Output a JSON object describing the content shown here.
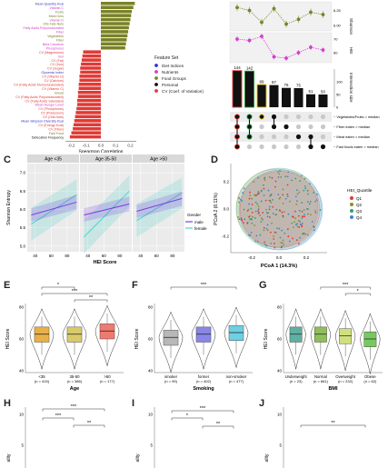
{
  "panels": {
    "C": "C",
    "D": "D",
    "E": "E",
    "F": "F",
    "G": "G",
    "H": "H",
    "I": "I",
    "J": "J"
  },
  "colors": {
    "diet": "#2f36c9",
    "nutrients": "#d63bd0",
    "food": "#7a8226",
    "personal": "#111111",
    "cv": "#e03a36",
    "male": "#7b3fe0",
    "female": "#4fd1c8",
    "q1": "#e03a36",
    "q2": "#8a8f2a",
    "q3": "#2aa37a",
    "q4": "#4a7fd8"
  },
  "chart_data": [
    {
      "id": "spearman",
      "type": "bar",
      "orientation": "horizontal",
      "xlabel": "Spearman Correlation",
      "xticks": [
        "-0.2",
        "-0.1",
        "0.0",
        "0.1",
        "0.2"
      ],
      "xlim": [
        -0.24,
        0.24
      ],
      "legend": {
        "title": "Feature Set",
        "items": [
          "Diet Indices",
          "Nutrients",
          "Food Groups",
          "Personal",
          "CV (Coef. of Variation)"
        ]
      },
      "categories": [
        "Mean Quantity Kcal",
        "Vitamin C",
        "Fruits",
        "Meal Gms",
        "Vitamin D",
        "Oils Fats Nuts",
        "Fatty Acids Polyunsaturated",
        "Fiber",
        "Vegetables",
        "Fiber",
        "Beta Carotene",
        "Phosphorus",
        "CV (Magnesium)",
        "Iron",
        "CV (Fat)",
        "CV (Iron)",
        "CV (Sugar)",
        "Glycemic Index",
        "CV (Vitamin D)",
        "CV (Calcium)",
        "CV (Fatty Acids Monounsaturated)",
        "CV (Vitamin C)",
        "Bread",
        "CV (Fatty Acids Polyunsaturated)",
        "CV (Fatty Acids Saturated)",
        "Mean Hunger Level",
        "CV (Phosphorus)",
        "CV (Potassium)",
        "CV (Oils Nuts)",
        "Mean Simpson Diversity Kcal",
        "CV (Energy Kcal)",
        "CV (Fiber)",
        "Fast Food",
        "Defecation Frequency"
      ],
      "groups": [
        "diet",
        "nutrients",
        "food",
        "food",
        "nutrients",
        "food",
        "nutrients",
        "nutrients",
        "food",
        "food",
        "nutrients",
        "nutrients",
        "cv",
        "nutrients",
        "cv",
        "cv",
        "cv",
        "diet",
        "cv",
        "cv",
        "cv",
        "cv",
        "food",
        "cv",
        "cv",
        "nutrients",
        "cv",
        "cv",
        "cv",
        "diet",
        "cv",
        "cv",
        "food",
        "personal"
      ],
      "values": [
        0.23,
        0.22,
        0.21,
        0.205,
        0.2,
        0.195,
        0.19,
        0.185,
        0.18,
        0.175,
        0.17,
        0.165,
        -0.12,
        -0.125,
        -0.13,
        -0.135,
        -0.14,
        -0.14,
        -0.145,
        -0.145,
        -0.15,
        -0.15,
        -0.155,
        -0.155,
        -0.16,
        -0.16,
        -0.165,
        -0.17,
        -0.175,
        -0.18,
        -0.185,
        -0.19,
        -0.2,
        -0.21
      ]
    },
    {
      "id": "upset",
      "type": "bar",
      "ylabel": "Intersection size",
      "yticks": [
        "0",
        "50",
        "100"
      ],
      "ylim": [
        0,
        150
      ],
      "values": [
        144,
        142,
        89,
        87,
        76,
        75,
        51,
        50
      ],
      "shannon": {
        "ylabel": "Shannon",
        "yticks": [
          "6.25",
          "6.00"
        ],
        "values": [
          6.3,
          6.25,
          6.05,
          6.28,
          6.02,
          6.1,
          6.22,
          6.18
        ]
      },
      "hei": {
        "ylabel": "HEI",
        "yticks": [
          "70",
          "60"
        ],
        "values": [
          70,
          69,
          72,
          57,
          56,
          60,
          64,
          62
        ]
      },
      "set_labels": [
        "~ Vegetables/Fruits > median",
        "~ Fiber eaten > median",
        "~ Meat eaten > median",
        "~ Fast foods eaten > median"
      ],
      "matrix": [
        [
          1,
          1,
          1,
          1
        ],
        [
          1,
          1,
          1,
          0
        ],
        [
          1,
          0,
          0,
          0
        ],
        [
          1,
          1,
          0,
          0
        ],
        [
          0,
          1,
          0,
          0
        ],
        [
          0,
          0,
          1,
          0
        ],
        [
          0,
          0,
          1,
          1
        ],
        [
          0,
          0,
          0,
          1
        ]
      ]
    },
    {
      "id": "age_regression",
      "type": "line",
      "xlabel": "HEI Score",
      "ylabel": "Shannon Entropy",
      "facets": [
        "Age <35",
        "Age 35-50",
        "Age >50"
      ],
      "xticks": [
        "40",
        "60",
        "80"
      ],
      "yticks": [
        "5.0",
        "5.5",
        "6.0",
        "6.5",
        "7.0"
      ],
      "xlim": [
        30,
        95
      ],
      "ylim": [
        4.85,
        7.25
      ],
      "legend": {
        "title": "Gender",
        "items": [
          "male",
          "female"
        ]
      },
      "lines": {
        "male": [
          [
            35,
            5.85,
            6.2
          ],
          [
            35,
            5.85,
            6.15
          ],
          [
            35,
            5.95,
            6.3
          ]
        ],
        "female": [
          [
            35,
            5.6,
            6.4
          ],
          [
            35,
            5.25,
            6.5
          ],
          [
            35,
            5.7,
            6.45
          ]
        ]
      }
    },
    {
      "id": "pcoa",
      "type": "scatter",
      "xlabel": "PCoA 1 (14.3%)",
      "ylabel": "PCoA 2 (8.11%)",
      "xticks": [
        "-0.2",
        "0.0",
        "0.2"
      ],
      "yticks": [
        "-0.2",
        "0.0",
        "0.2"
      ],
      "legend": {
        "title": "HEI_Quartile",
        "items": [
          "Q1",
          "Q2",
          "Q3",
          "Q4"
        ]
      }
    },
    {
      "id": "age_box",
      "type": "box",
      "xlabel": "Age",
      "ylabel": "HEI Score",
      "categories": [
        "<35",
        "35-50",
        ">50"
      ],
      "counts": [
        "(n = 415)",
        "(n = 386)",
        "(n = 177)"
      ],
      "medians": [
        63,
        63,
        65
      ],
      "significance": [
        {
          "from": 0,
          "to": 1,
          "label": "*"
        },
        {
          "from": 0,
          "to": 2,
          "label": "***"
        },
        {
          "from": 1,
          "to": 2,
          "label": "**"
        }
      ]
    },
    {
      "id": "smoking_box",
      "type": "box",
      "xlabel": "Smoking",
      "ylabel": "HEI Score",
      "categories": [
        "smoker",
        "former",
        "non-smoker"
      ],
      "counts": [
        "(n = 99)",
        "(n = 402)",
        "(n = 477)"
      ],
      "medians": [
        61,
        63,
        64
      ],
      "significance": [
        {
          "from": 0,
          "to": 2,
          "label": "***"
        }
      ]
    },
    {
      "id": "bmi_box",
      "type": "box",
      "xlabel": "BMI",
      "ylabel": "HEI Score",
      "categories": [
        "Underweight",
        "Normal",
        "Overweight",
        "Obese"
      ],
      "counts": [
        "(n = 23)",
        "(n = 661)",
        "(n = 232)",
        "(n = 62)"
      ],
      "medians": [
        63,
        63,
        62,
        60
      ],
      "significance": [
        {
          "from": 1,
          "to": 3,
          "label": "***"
        },
        {
          "from": 2,
          "to": 3,
          "label": "*"
        }
      ]
    },
    {
      "id": "panel_h",
      "type": "box",
      "ylabel": "ality",
      "yticks": [
        "10",
        "5"
      ],
      "significance": [
        {
          "label": "***"
        },
        {
          "label": "***"
        },
        {
          "label": "**"
        }
      ]
    },
    {
      "id": "panel_i",
      "type": "box",
      "ylabel": "ality",
      "yticks": [
        "10",
        "5"
      ],
      "significance": [
        {
          "label": "***"
        },
        {
          "label": "*"
        },
        {
          "label": "**"
        }
      ]
    },
    {
      "id": "panel_j",
      "type": "box",
      "ylabel": "ality",
      "yticks": [
        "10",
        "5"
      ],
      "significance": [
        {
          "label": "**"
        }
      ]
    }
  ]
}
